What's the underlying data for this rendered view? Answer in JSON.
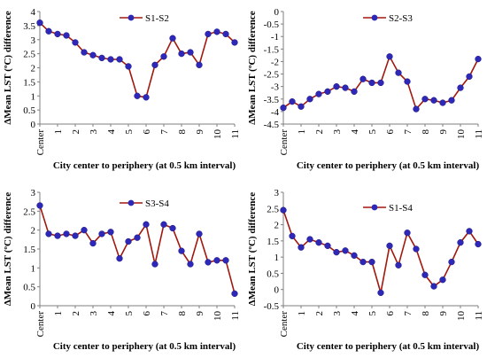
{
  "figure": {
    "colors": {
      "line": "#a0180f",
      "marker": "#2e28b8",
      "axis": "#7f7f7f"
    },
    "x_tick_labels": [
      "Center",
      "1",
      "2",
      "3",
      "4",
      "5",
      "6",
      "7",
      "8",
      "9",
      "10",
      "11"
    ]
  },
  "chart_data": [
    {
      "type": "line",
      "series": [
        {
          "name": "S1-S2",
          "x": [
            0,
            0.5,
            1,
            1.5,
            2,
            2.5,
            3,
            3.5,
            4,
            4.5,
            5,
            5.5,
            6,
            6.5,
            7,
            7.5,
            8,
            8.5,
            9,
            9.5,
            10,
            10.5,
            11
          ],
          "values": [
            3.6,
            3.3,
            3.2,
            3.15,
            2.9,
            2.55,
            2.45,
            2.35,
            2.3,
            2.3,
            2.05,
            1.0,
            0.95,
            2.1,
            2.4,
            3.05,
            2.5,
            2.55,
            2.1,
            3.2,
            3.28,
            3.2,
            2.9
          ]
        }
      ],
      "xlabel": "City center to periphery (at 0.5 km interval)",
      "ylabel": "ΔMean LST (ºC) difference",
      "ylim": [
        0,
        4
      ],
      "yticks": [
        "0",
        "0.5",
        "1",
        "1.5",
        "2",
        "2.5",
        "3",
        "3.5",
        "4"
      ],
      "legend": "top-right"
    },
    {
      "type": "line",
      "series": [
        {
          "name": "S2-S3",
          "x": [
            0,
            0.5,
            1,
            1.5,
            2,
            2.5,
            3,
            3.5,
            4,
            4.5,
            5,
            5.5,
            6,
            6.5,
            7,
            7.5,
            8,
            8.5,
            9,
            9.5,
            10,
            10.5,
            11
          ],
          "values": [
            -3.85,
            -3.6,
            -3.8,
            -3.5,
            -3.3,
            -3.2,
            -3.0,
            -3.05,
            -3.2,
            -2.7,
            -2.85,
            -2.85,
            -1.8,
            -2.45,
            -2.8,
            -3.9,
            -3.5,
            -3.55,
            -3.65,
            -3.55,
            -3.05,
            -2.6,
            -1.9
          ]
        }
      ],
      "xlabel": "City center to periphery (at 0.5 km interval)",
      "ylabel": "ΔMean LST (ºC) difference",
      "ylim": [
        -4.5,
        0
      ],
      "yticks": [
        "-4.5",
        "-4",
        "-3.5",
        "-3",
        "-2.5",
        "-2",
        "-1.5",
        "-1",
        "-0.5",
        "0"
      ],
      "legend": "top-right"
    },
    {
      "type": "line",
      "series": [
        {
          "name": "S3-S4",
          "x": [
            0,
            0.5,
            1,
            1.5,
            2,
            2.5,
            3,
            3.5,
            4,
            4.5,
            5,
            5.5,
            6,
            6.5,
            7,
            7.5,
            8,
            8.5,
            9,
            9.5,
            10,
            10.5,
            11
          ],
          "values": [
            2.65,
            1.9,
            1.85,
            1.9,
            1.85,
            2.0,
            1.65,
            1.9,
            1.95,
            1.25,
            1.7,
            1.8,
            2.15,
            1.1,
            2.15,
            2.05,
            1.45,
            1.1,
            1.9,
            1.15,
            1.2,
            1.2,
            0.32
          ]
        }
      ],
      "xlabel": "City center to periphery (at 0.5 km interval)",
      "ylabel": "ΔMean LST (ºC) difference",
      "ylim": [
        0,
        3
      ],
      "yticks": [
        "0",
        "0.5",
        "1",
        "1.5",
        "2",
        "2.5",
        "3"
      ],
      "legend": "top-right"
    },
    {
      "type": "line",
      "series": [
        {
          "name": "S1-S4",
          "x": [
            0,
            0.5,
            1,
            1.5,
            2,
            2.5,
            3,
            3.5,
            4,
            4.5,
            5,
            5.5,
            6,
            6.5,
            7,
            7.5,
            8,
            8.5,
            9,
            9.5,
            10,
            10.5,
            11
          ],
          "values": [
            2.45,
            1.65,
            1.3,
            1.55,
            1.45,
            1.35,
            1.15,
            1.2,
            1.05,
            0.85,
            0.85,
            -0.1,
            1.35,
            0.75,
            1.75,
            1.25,
            0.45,
            0.1,
            0.3,
            0.85,
            1.45,
            1.8,
            1.4
          ]
        }
      ],
      "xlabel": "City center to periphery (at 0.5 km interval)",
      "ylabel": "ΔMean LST (ºC) difference",
      "ylim": [
        -0.5,
        3
      ],
      "yticks": [
        "-0.5",
        "0",
        "0.5",
        "1",
        "1.5",
        "2",
        "2.5",
        "3"
      ],
      "legend": "top-right"
    }
  ]
}
